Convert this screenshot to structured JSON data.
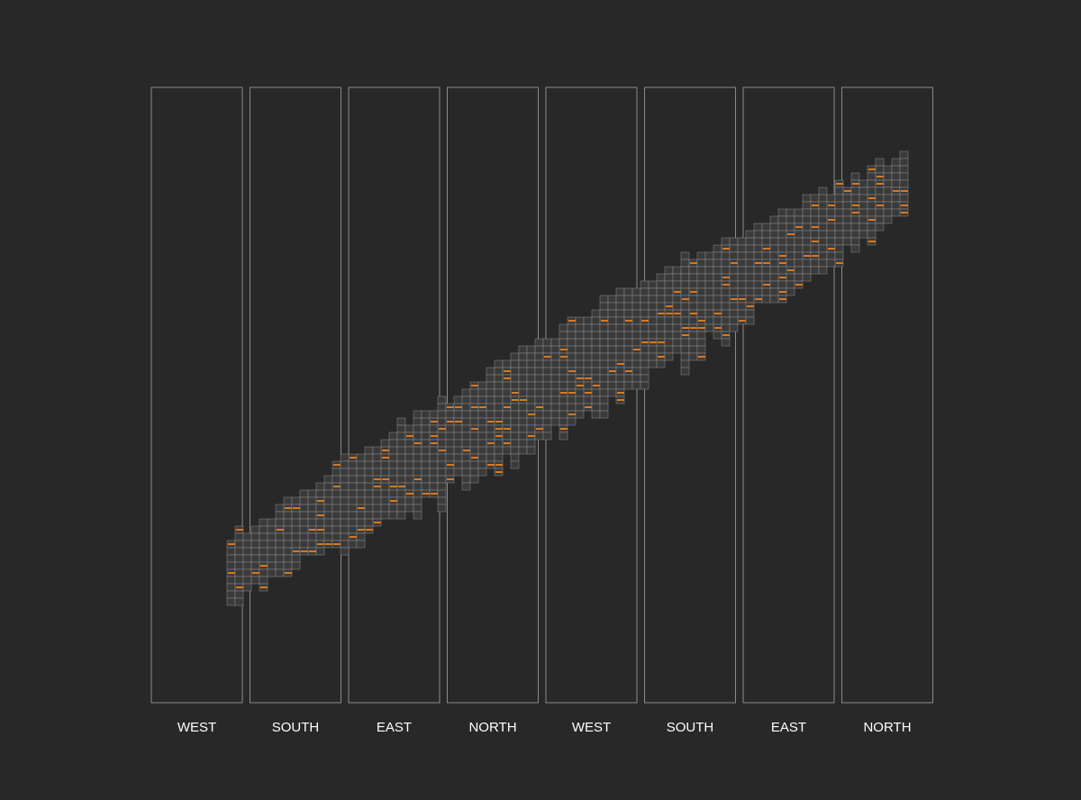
{
  "labels": [
    "WEST",
    "SOUTH",
    "EAST",
    "NORTH",
    "WEST",
    "SOUTH",
    "EAST",
    "NORTH"
  ]
}
